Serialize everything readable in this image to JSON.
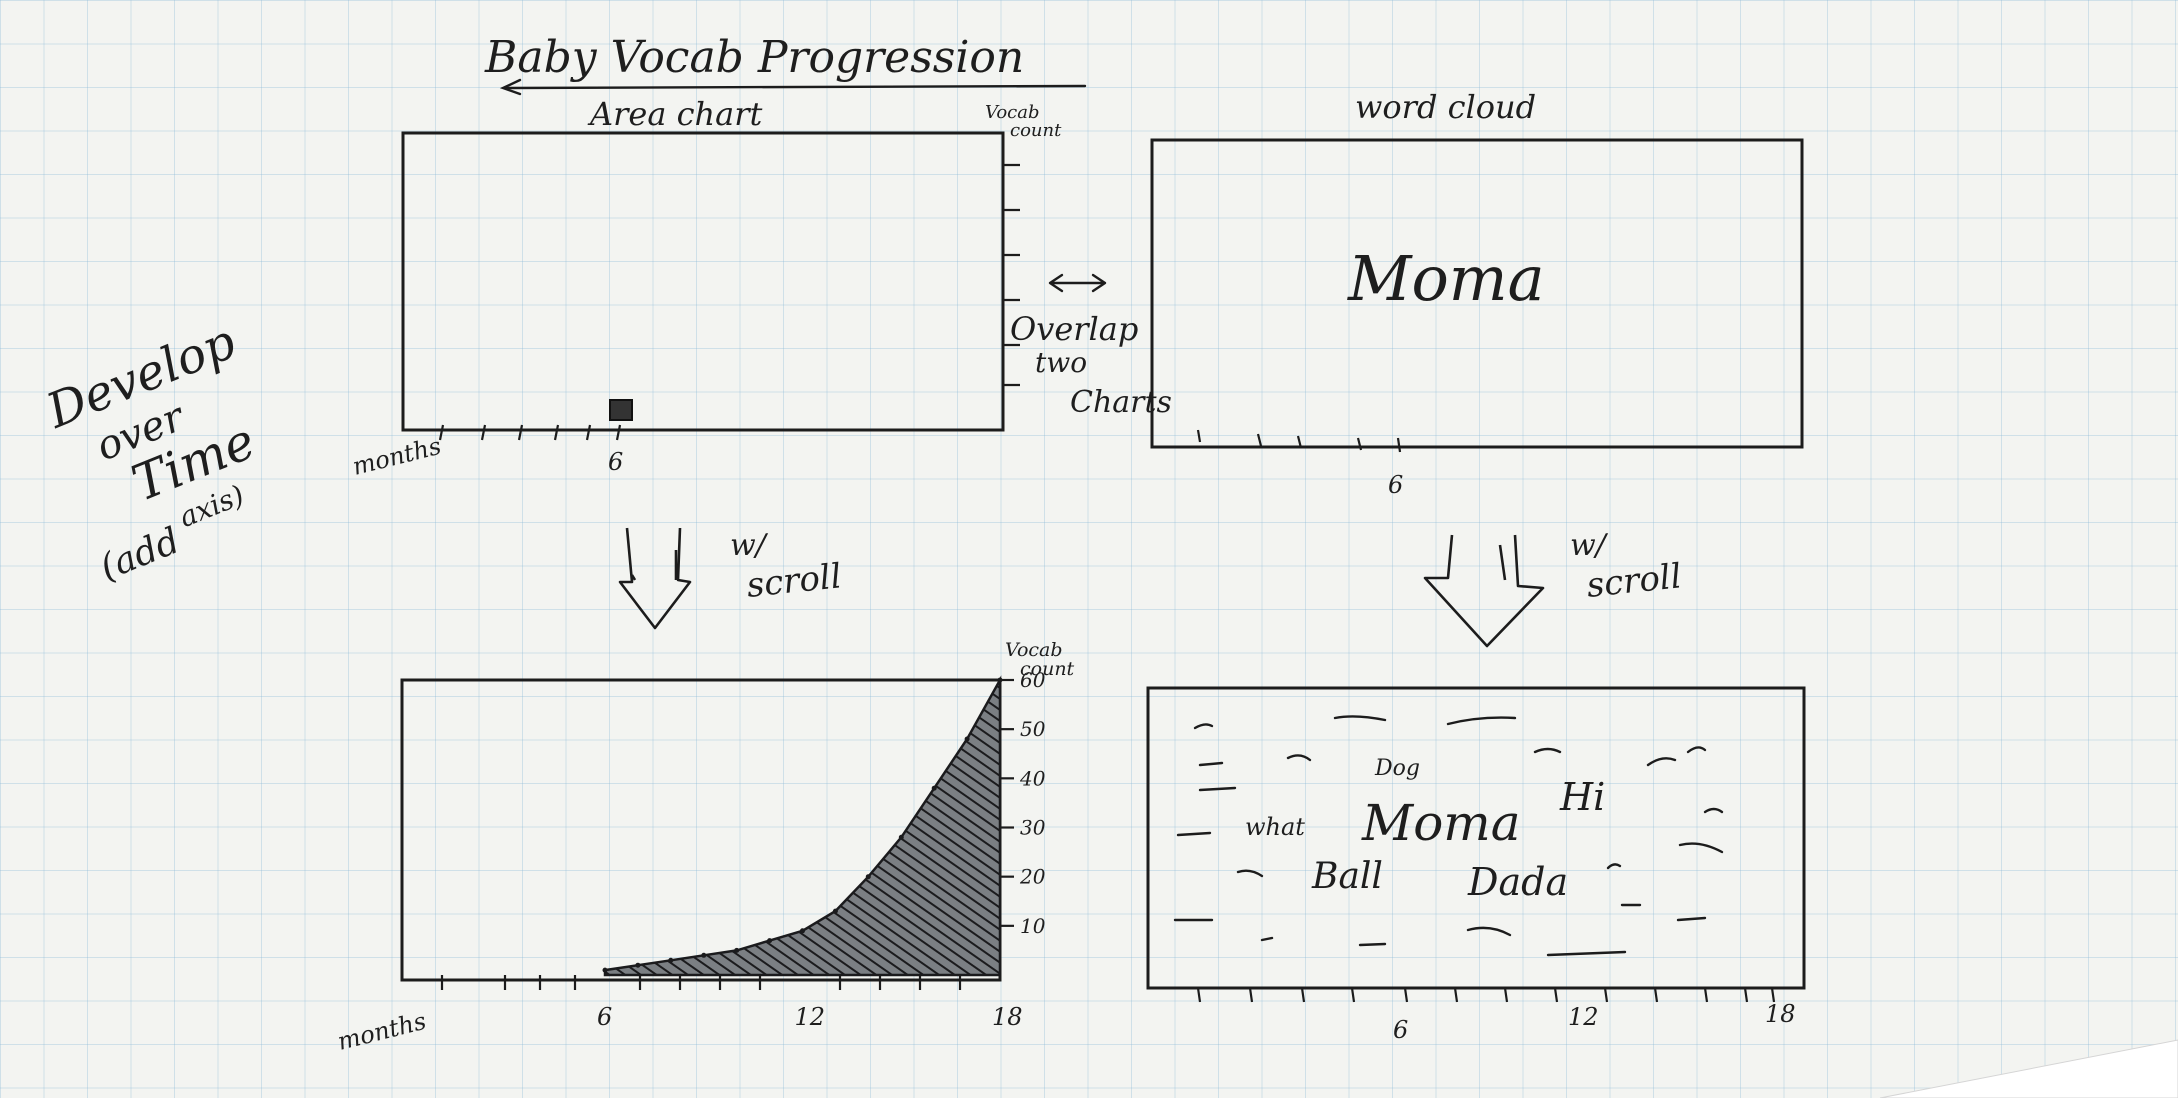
{
  "title": "Baby Vocab Progression",
  "side_note": {
    "line1": "Develop",
    "line2": "over",
    "line3": "Time",
    "line4": "(add",
    "line5": "axis)"
  },
  "overlap_note": {
    "line1": "Overlap",
    "line2": "two",
    "line3": "Charts"
  },
  "scroll_label": {
    "line1": "w/",
    "line2": "scroll"
  },
  "area_chart": {
    "heading": "Area chart",
    "y_label_line1": "Vocab",
    "y_label_line2": "count",
    "x_label": "months",
    "top_x_tick": "6",
    "bottom_x_ticks": [
      "6",
      "12",
      "18"
    ],
    "bottom_y_ticks": [
      "60",
      "50",
      "40",
      "30",
      "20",
      "10"
    ]
  },
  "word_cloud": {
    "heading": "word cloud",
    "top_word": "Moma",
    "top_x_tick": "6",
    "bottom_x_ticks": [
      "6",
      "12",
      "18"
    ],
    "words": [
      "Dog",
      "what",
      "Moma",
      "Hi",
      "Ball",
      "Dada"
    ]
  },
  "chart_data": {
    "type": "area",
    "xlabel": "months",
    "ylabel": "Vocab count",
    "xlim": [
      6,
      18
    ],
    "ylim": [
      0,
      60
    ],
    "x": [
      6,
      7,
      8,
      9,
      10,
      11,
      12,
      13,
      14,
      15,
      16,
      17,
      18
    ],
    "values": [
      1,
      2,
      3,
      4,
      5,
      7,
      9,
      13,
      20,
      28,
      38,
      48,
      60
    ]
  }
}
